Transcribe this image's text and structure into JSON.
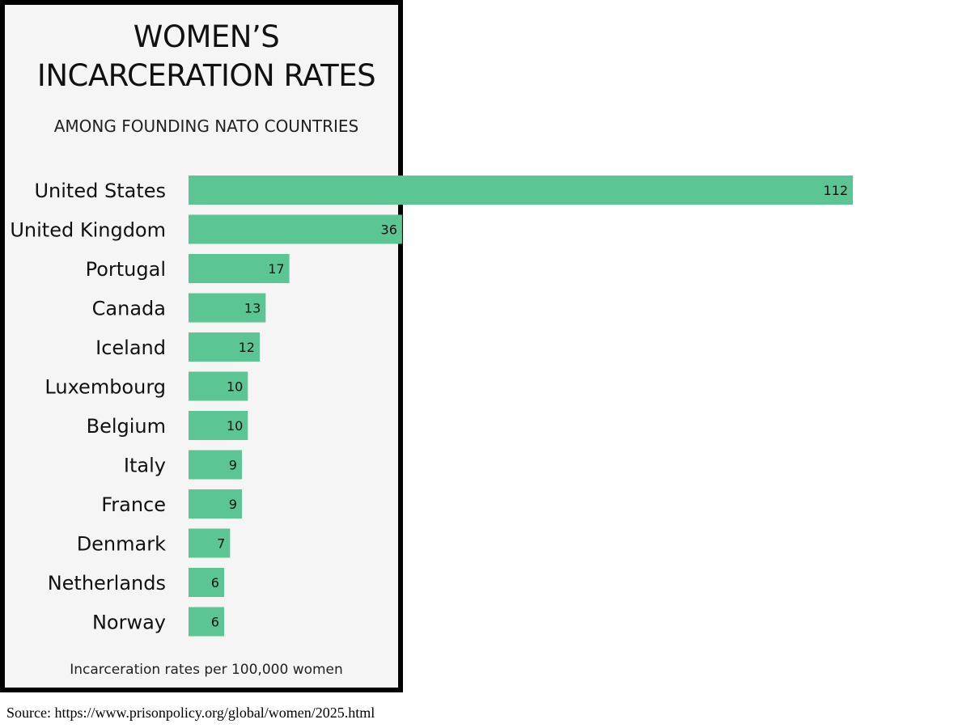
{
  "title_line1": "WOMEN’S",
  "title_line2": "INCARCERATION RATES",
  "subtitle": "AMONG FOUNDING NATO COUNTRIES",
  "footnote": "Incarceration rates per 100,000 women",
  "source": "Source: https://www.prisonpolicy.org/global/women/2025.html",
  "colors": {
    "bar": "#5cc594",
    "panel_background": "#f5f5f5",
    "border": "#000000",
    "text": "#111111"
  },
  "chart_data": {
    "type": "bar",
    "orientation": "horizontal",
    "title": "WOMEN’S INCARCERATION RATES",
    "subtitle": "AMONG FOUNDING NATO COUNTRIES",
    "xlabel": "Incarceration rates per 100,000 women",
    "ylabel": "",
    "categories": [
      "United States",
      "United Kingdom",
      "Portugal",
      "Canada",
      "Iceland",
      "Luxembourg",
      "Belgium",
      "Italy",
      "France",
      "Denmark",
      "Netherlands",
      "Norway"
    ],
    "values": [
      112,
      36,
      17,
      13,
      12,
      10,
      10,
      9,
      9,
      7,
      6,
      6
    ],
    "xlim": [
      0,
      112
    ],
    "grid": false,
    "data_labels": true
  }
}
